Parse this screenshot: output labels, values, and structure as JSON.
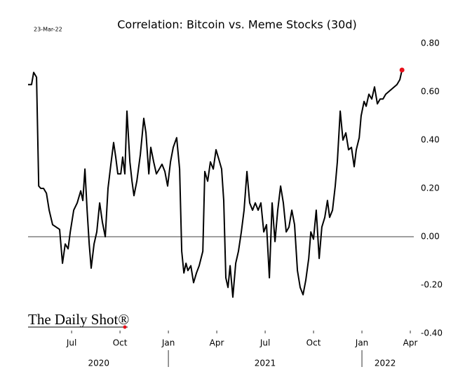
{
  "chart_data": {
    "type": "line",
    "title": "Correlation: Bitcoin vs. Meme Stocks (30d)",
    "date": "23-Mar-22",
    "source": "The Daily Shot®",
    "color": "#000000",
    "last_point_color": "#e8101a",
    "reference_line": 0,
    "grid": false,
    "x": [
      2020.275,
      2020.293,
      2020.304,
      2020.319,
      2020.33,
      2020.341,
      2020.355,
      2020.37,
      2020.384,
      2020.402,
      2020.42,
      2020.438,
      2020.453,
      2020.467,
      2020.482,
      2020.493,
      2020.511,
      2020.529,
      2020.547,
      2020.558,
      2020.569,
      2020.58,
      2020.591,
      2020.601,
      2020.616,
      2020.63,
      2020.645,
      2020.659,
      2020.674,
      2020.688,
      2020.703,
      2020.717,
      2020.728,
      2020.739,
      2020.754,
      2020.764,
      2020.775,
      2020.786,
      2020.801,
      2020.812,
      2020.822,
      2020.837,
      2020.855,
      2020.873,
      2020.884,
      2020.899,
      2020.909,
      2020.924,
      2020.938,
      2020.953,
      2020.967,
      2020.982,
      2020.996,
      2021.011,
      2021.025,
      2021.043,
      2021.058,
      2021.069,
      2021.08,
      2021.091,
      2021.101,
      2021.116,
      2021.13,
      2021.145,
      2021.159,
      2021.178,
      2021.188,
      2021.203,
      2021.217,
      2021.232,
      2021.246,
      2021.261,
      2021.275,
      2021.286,
      2021.297,
      2021.308,
      2021.319,
      2021.333,
      2021.348,
      2021.362,
      2021.377,
      2021.391,
      2021.406,
      2021.42,
      2021.435,
      2021.449,
      2021.464,
      2021.478,
      2021.493,
      2021.507,
      2021.522,
      2021.536,
      2021.551,
      2021.565,
      2021.58,
      2021.594,
      2021.609,
      2021.623,
      2021.638,
      2021.652,
      2021.667,
      2021.681,
      2021.696,
      2021.71,
      2021.725,
      2021.736,
      2021.75,
      2021.764,
      2021.779,
      2021.793,
      2021.808,
      2021.822,
      2021.833,
      2021.848,
      2021.862,
      2021.873,
      2021.888,
      2021.902,
      2021.917,
      2021.931,
      2021.946,
      2021.96,
      2021.971,
      2021.986,
      2021.996,
      2022.011,
      2022.022,
      2022.036,
      2022.051,
      2022.065,
      2022.08,
      2022.094,
      2022.109,
      2022.123,
      2022.138,
      2022.152,
      2022.167,
      2022.181,
      2022.196,
      2022.207
    ],
    "values": [
      0.63,
      0.63,
      0.68,
      0.66,
      0.21,
      0.2,
      0.2,
      0.18,
      0.11,
      0.05,
      0.04,
      0.03,
      -0.11,
      -0.03,
      -0.05,
      0.02,
      0.11,
      0.14,
      0.19,
      0.15,
      0.28,
      0.11,
      -0.03,
      -0.13,
      -0.03,
      0.02,
      0.14,
      0.06,
      0.0,
      0.2,
      0.3,
      0.39,
      0.33,
      0.26,
      0.26,
      0.33,
      0.26,
      0.52,
      0.31,
      0.23,
      0.17,
      0.23,
      0.34,
      0.49,
      0.43,
      0.26,
      0.37,
      0.31,
      0.26,
      0.28,
      0.3,
      0.27,
      0.21,
      0.31,
      0.37,
      0.41,
      0.28,
      -0.06,
      -0.15,
      -0.11,
      -0.14,
      -0.12,
      -0.19,
      -0.15,
      -0.12,
      -0.06,
      0.27,
      0.23,
      0.31,
      0.28,
      0.36,
      0.32,
      0.28,
      0.15,
      -0.17,
      -0.21,
      -0.12,
      -0.25,
      -0.11,
      -0.06,
      0.02,
      0.11,
      0.27,
      0.14,
      0.11,
      0.14,
      0.11,
      0.14,
      0.02,
      0.05,
      -0.17,
      0.14,
      -0.02,
      0.11,
      0.21,
      0.14,
      0.02,
      0.04,
      0.11,
      0.05,
      -0.14,
      -0.21,
      -0.24,
      -0.18,
      -0.09,
      0.02,
      -0.01,
      0.11,
      -0.09,
      0.04,
      0.08,
      0.15,
      0.08,
      0.11,
      0.21,
      0.31,
      0.52,
      0.4,
      0.43,
      0.36,
      0.37,
      0.29,
      0.36,
      0.41,
      0.5,
      0.56,
      0.54,
      0.59,
      0.57,
      0.62,
      0.55,
      0.57,
      0.57,
      0.59,
      0.6,
      0.61,
      0.62,
      0.63,
      0.65,
      0.69
    ],
    "xlim": [
      2020.275,
      2022.268
    ],
    "xticks": [
      {
        "value": 2020.5,
        "label": "Jul"
      },
      {
        "value": 2020.75,
        "label": "Oct"
      },
      {
        "value": 2021,
        "label": "Jan"
      },
      {
        "value": 2021.25,
        "label": "Apr"
      },
      {
        "value": 2021.5,
        "label": "Jul"
      },
      {
        "value": 2021.75,
        "label": "Oct"
      },
      {
        "value": 2022,
        "label": "Jan"
      },
      {
        "value": 2022.25,
        "label": "Apr"
      }
    ],
    "year_labels": [
      {
        "value": 2020.64,
        "label": "2020"
      },
      {
        "value": 2021.5,
        "label": "2021"
      },
      {
        "value": 2022.12,
        "label": "2022"
      }
    ],
    "year_separators": [
      2021,
      2022
    ],
    "ylim": [
      -0.4,
      0.8
    ],
    "yticks": [
      {
        "value": -0.4,
        "label": "-0.40"
      },
      {
        "value": -0.2,
        "label": "-0.20"
      },
      {
        "value": 0,
        "label": "0.00"
      },
      {
        "value": 0.2,
        "label": "0.20"
      },
      {
        "value": 0.4,
        "label": "0.40"
      },
      {
        "value": 0.6,
        "label": "0.60"
      },
      {
        "value": 0.8,
        "label": "0.80"
      }
    ]
  }
}
